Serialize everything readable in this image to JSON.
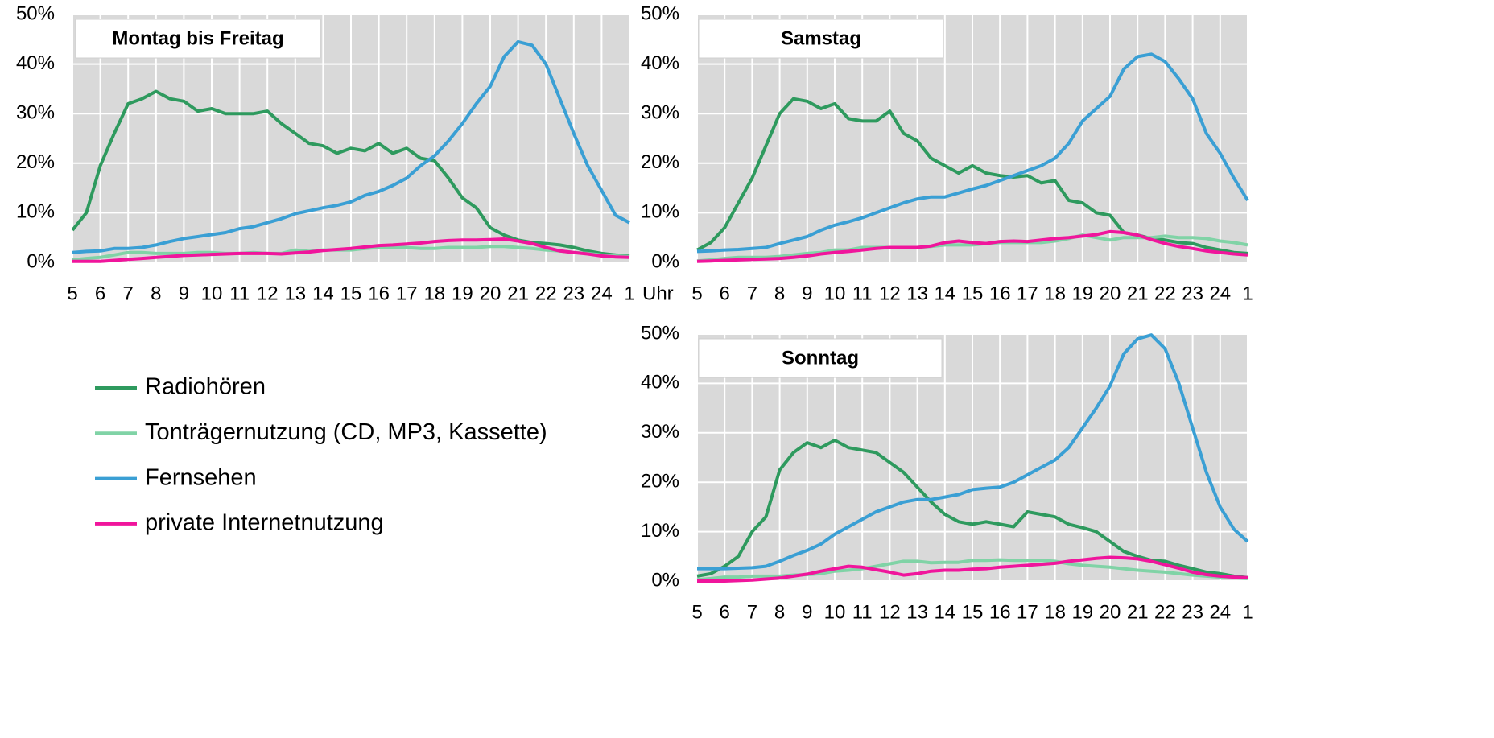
{
  "chart_data": [
    {
      "type": "line",
      "title": "Montag bis Freitag",
      "xlabel": "Uhr",
      "x": [
        5,
        5.5,
        6,
        6.5,
        7,
        7.5,
        8,
        8.5,
        9,
        9.5,
        10,
        10.5,
        11,
        11.5,
        12,
        12.5,
        13,
        13.5,
        14,
        14.5,
        15,
        15.5,
        16,
        16.5,
        17,
        17.5,
        18,
        18.5,
        19,
        19.5,
        20,
        20.5,
        21,
        21.5,
        22,
        22.5,
        23,
        23.5,
        24,
        24.5,
        25
      ],
      "xlim": [
        5,
        25
      ],
      "xticks": [
        5,
        6,
        7,
        8,
        9,
        10,
        11,
        12,
        13,
        14,
        15,
        16,
        17,
        18,
        19,
        20,
        21,
        22,
        23,
        24,
        {
          "value": 25,
          "label": "1"
        }
      ],
      "ylim": [
        0,
        50
      ],
      "yticks": [
        {
          "value": 0,
          "label": "0%"
        },
        {
          "value": 10,
          "label": "10%"
        },
        {
          "value": 20,
          "label": "20%"
        },
        {
          "value": 30,
          "label": "30%"
        },
        {
          "value": 40,
          "label": "40%"
        },
        {
          "value": 50,
          "label": "50%"
        }
      ],
      "grid": true,
      "series": [
        {
          "name": "Radiohören",
          "color": "#2e9a5e",
          "values": [
            6.5,
            10,
            19.5,
            26,
            32,
            33,
            34.5,
            33,
            32.5,
            30.5,
            31,
            30,
            30,
            30,
            30.5,
            28,
            26,
            24,
            23.5,
            22,
            23,
            22.5,
            24,
            22,
            23,
            21,
            20.5,
            17,
            13,
            11,
            7,
            5.5,
            4.5,
            4,
            3.8,
            3.5,
            3,
            2.3,
            1.8,
            1.5,
            1.3
          ]
        },
        {
          "name": "Tonträgernutzung (CD, MP3, Kassette)",
          "color": "#80d3a6",
          "values": [
            0.5,
            0.8,
            1,
            1.5,
            2,
            2,
            1.8,
            1.8,
            1.8,
            2,
            2,
            1.8,
            1.8,
            2,
            1.8,
            1.8,
            2.5,
            2.2,
            2.5,
            2.5,
            2.5,
            2.8,
            3,
            3,
            3,
            2.8,
            2.8,
            3,
            3,
            3,
            3.2,
            3.2,
            3,
            2.8,
            2.5,
            2.3,
            2,
            1.8,
            1.5,
            1.3,
            1.2
          ]
        },
        {
          "name": "Fernsehen",
          "color": "#3a9fd4",
          "values": [
            2,
            2.2,
            2.3,
            2.8,
            2.8,
            3,
            3.5,
            4.2,
            4.8,
            5.2,
            5.6,
            6,
            6.8,
            7.2,
            8,
            8.8,
            9.8,
            10.4,
            11,
            11.5,
            12.2,
            13.5,
            14.3,
            15.5,
            17,
            19.5,
            21.5,
            24.5,
            28,
            32,
            35.5,
            41.5,
            44.5,
            43.8,
            40,
            33,
            26,
            19.5,
            14.5,
            9.5,
            8
          ]
        },
        {
          "name": "private Internetnutzung",
          "color": "#f0159c",
          "values": [
            0.2,
            0.2,
            0.2,
            0.4,
            0.6,
            0.8,
            1,
            1.2,
            1.4,
            1.5,
            1.6,
            1.7,
            1.8,
            1.8,
            1.8,
            1.7,
            1.9,
            2.1,
            2.4,
            2.6,
            2.8,
            3.1,
            3.4,
            3.5,
            3.7,
            3.9,
            4.2,
            4.4,
            4.5,
            4.5,
            4.6,
            4.7,
            4.3,
            3.8,
            3,
            2.3,
            2,
            1.7,
            1.3,
            1.1,
            1
          ]
        }
      ]
    },
    {
      "type": "line",
      "title": "Samstag",
      "x": [
        5,
        5.5,
        6,
        6.5,
        7,
        7.5,
        8,
        8.5,
        9,
        9.5,
        10,
        10.5,
        11,
        11.5,
        12,
        12.5,
        13,
        13.5,
        14,
        14.5,
        15,
        15.5,
        16,
        16.5,
        17,
        17.5,
        18,
        18.5,
        19,
        19.5,
        20,
        20.5,
        21,
        21.5,
        22,
        22.5,
        23,
        23.5,
        24,
        24.5,
        25
      ],
      "xlim": [
        5,
        25
      ],
      "xticks": [
        5,
        6,
        7,
        8,
        9,
        10,
        11,
        12,
        13,
        14,
        15,
        16,
        17,
        18,
        19,
        20,
        21,
        22,
        23,
        24,
        {
          "value": 25,
          "label": "1"
        }
      ],
      "ylim": [
        0,
        50
      ],
      "yticks": [
        {
          "value": 0,
          "label": "0%"
        },
        {
          "value": 10,
          "label": "10%"
        },
        {
          "value": 20,
          "label": "20%"
        },
        {
          "value": 30,
          "label": "30%"
        },
        {
          "value": 40,
          "label": "40%"
        },
        {
          "value": 50,
          "label": "50%"
        }
      ],
      "grid": true,
      "series": [
        {
          "name": "Radiohören",
          "color": "#2e9a5e",
          "values": [
            2.5,
            4,
            7,
            12,
            17,
            23.5,
            30,
            33,
            32.5,
            31,
            32,
            29,
            28.5,
            28.5,
            30.5,
            26,
            24.5,
            21,
            19.5,
            18,
            19.5,
            18,
            17.5,
            17.2,
            17.5,
            16,
            16.5,
            12.5,
            12,
            10,
            9.5,
            6,
            5.5,
            4.8,
            4.5,
            4,
            3.8,
            3,
            2.5,
            2,
            1.8
          ]
        },
        {
          "name": "Tonträgernutzung (CD, MP3, Kassette)",
          "color": "#80d3a6",
          "values": [
            0.3,
            0.5,
            0.8,
            1,
            1,
            1,
            1.2,
            1.5,
            1.8,
            2,
            2.5,
            2.5,
            3,
            3,
            3,
            3,
            3,
            3.2,
            3.5,
            3.5,
            3.5,
            3.8,
            4,
            4,
            4,
            4,
            4.3,
            4.8,
            5.5,
            5,
            4.5,
            5,
            5,
            5,
            5.3,
            5,
            5,
            4.8,
            4.3,
            4,
            3.5
          ]
        },
        {
          "name": "Fernsehen",
          "color": "#3a9fd4",
          "values": [
            2.2,
            2.3,
            2.5,
            2.6,
            2.8,
            3,
            3.8,
            4.5,
            5.2,
            6.5,
            7.5,
            8.2,
            9,
            10,
            11,
            12,
            12.8,
            13.2,
            13.2,
            14,
            14.8,
            15.5,
            16.5,
            17.5,
            18.5,
            19.5,
            21,
            24,
            28.5,
            31,
            33.5,
            39,
            41.5,
            42,
            40.5,
            37,
            33,
            26,
            22,
            17,
            12.5
          ]
        },
        {
          "name": "private Internetnutzung",
          "color": "#f0159c",
          "values": [
            0.2,
            0.3,
            0.4,
            0.5,
            0.6,
            0.7,
            0.8,
            1,
            1.3,
            1.7,
            2,
            2.2,
            2.5,
            2.8,
            3,
            3,
            3,
            3.3,
            4,
            4.3,
            4,
            3.8,
            4.2,
            4.3,
            4.2,
            4.5,
            4.8,
            5,
            5.3,
            5.6,
            6.2,
            6,
            5.5,
            4.6,
            3.8,
            3.2,
            2.8,
            2.3,
            2,
            1.7,
            1.5
          ]
        }
      ]
    },
    {
      "type": "line",
      "title": "Sonntag",
      "x": [
        5,
        5.5,
        6,
        6.5,
        7,
        7.5,
        8,
        8.5,
        9,
        9.5,
        10,
        10.5,
        11,
        11.5,
        12,
        12.5,
        13,
        13.5,
        14,
        14.5,
        15,
        15.5,
        16,
        16.5,
        17,
        17.5,
        18,
        18.5,
        19,
        19.5,
        20,
        20.5,
        21,
        21.5,
        22,
        22.5,
        23,
        23.5,
        24,
        24.5,
        25
      ],
      "xlim": [
        5,
        25
      ],
      "xticks": [
        5,
        6,
        7,
        8,
        9,
        10,
        11,
        12,
        13,
        14,
        15,
        16,
        17,
        18,
        19,
        20,
        21,
        22,
        23,
        24,
        {
          "value": 25,
          "label": "1"
        }
      ],
      "ylim": [
        0,
        50
      ],
      "yticks": [
        {
          "value": 0,
          "label": "0%"
        },
        {
          "value": 10,
          "label": "10%"
        },
        {
          "value": 20,
          "label": "20%"
        },
        {
          "value": 30,
          "label": "30%"
        },
        {
          "value": 40,
          "label": "40%"
        },
        {
          "value": 50,
          "label": "50%"
        }
      ],
      "grid": true,
      "series": [
        {
          "name": "Radiohören",
          "color": "#2e9a5e",
          "values": [
            1,
            1.5,
            3,
            5,
            10,
            13,
            22.5,
            26,
            28,
            27,
            28.5,
            27,
            26.5,
            26,
            24,
            22,
            19,
            16,
            13.5,
            12,
            11.5,
            12,
            11.5,
            11,
            14,
            13.5,
            13,
            11.5,
            10.8,
            10,
            8,
            6,
            5,
            4.2,
            4,
            3.2,
            2.5,
            1.8,
            1.5,
            1,
            0.7
          ]
        },
        {
          "name": "Tonträgernutzung (CD, MP3, Kassette)",
          "color": "#80d3a6",
          "values": [
            0.3,
            0.5,
            0.8,
            0.8,
            1,
            1,
            1,
            1.2,
            1.3,
            1.5,
            2,
            2.2,
            2.5,
            3,
            3.5,
            4,
            4,
            3.7,
            3.8,
            3.8,
            4.2,
            4.2,
            4.3,
            4.2,
            4.2,
            4.2,
            4,
            3.5,
            3.2,
            3,
            2.8,
            2.5,
            2.2,
            2,
            1.8,
            1.5,
            1.2,
            1,
            0.8,
            0.7,
            0.5
          ]
        },
        {
          "name": "Fernsehen",
          "color": "#3a9fd4",
          "values": [
            2.5,
            2.5,
            2.5,
            2.6,
            2.7,
            3,
            4,
            5.2,
            6.2,
            7.5,
            9.5,
            11,
            12.5,
            14,
            15,
            16,
            16.5,
            16.5,
            17,
            17.5,
            18.5,
            18.8,
            19,
            20,
            21.5,
            23,
            24.5,
            27,
            31,
            35,
            39.5,
            46,
            49,
            49.8,
            47,
            40,
            31,
            22,
            15,
            10.5,
            8
          ]
        },
        {
          "name": "private Internetnutzung",
          "color": "#f0159c",
          "values": [
            0,
            0,
            0,
            0.1,
            0.2,
            0.4,
            0.6,
            1,
            1.4,
            2,
            2.5,
            3,
            2.8,
            2.3,
            1.8,
            1.2,
            1.5,
            2,
            2.2,
            2.2,
            2.4,
            2.5,
            2.8,
            3,
            3.2,
            3.4,
            3.6,
            4,
            4.3,
            4.6,
            4.8,
            4.7,
            4.5,
            4,
            3.3,
            2.6,
            1.8,
            1.3,
            1,
            0.8,
            0.7
          ]
        }
      ]
    }
  ]
}
